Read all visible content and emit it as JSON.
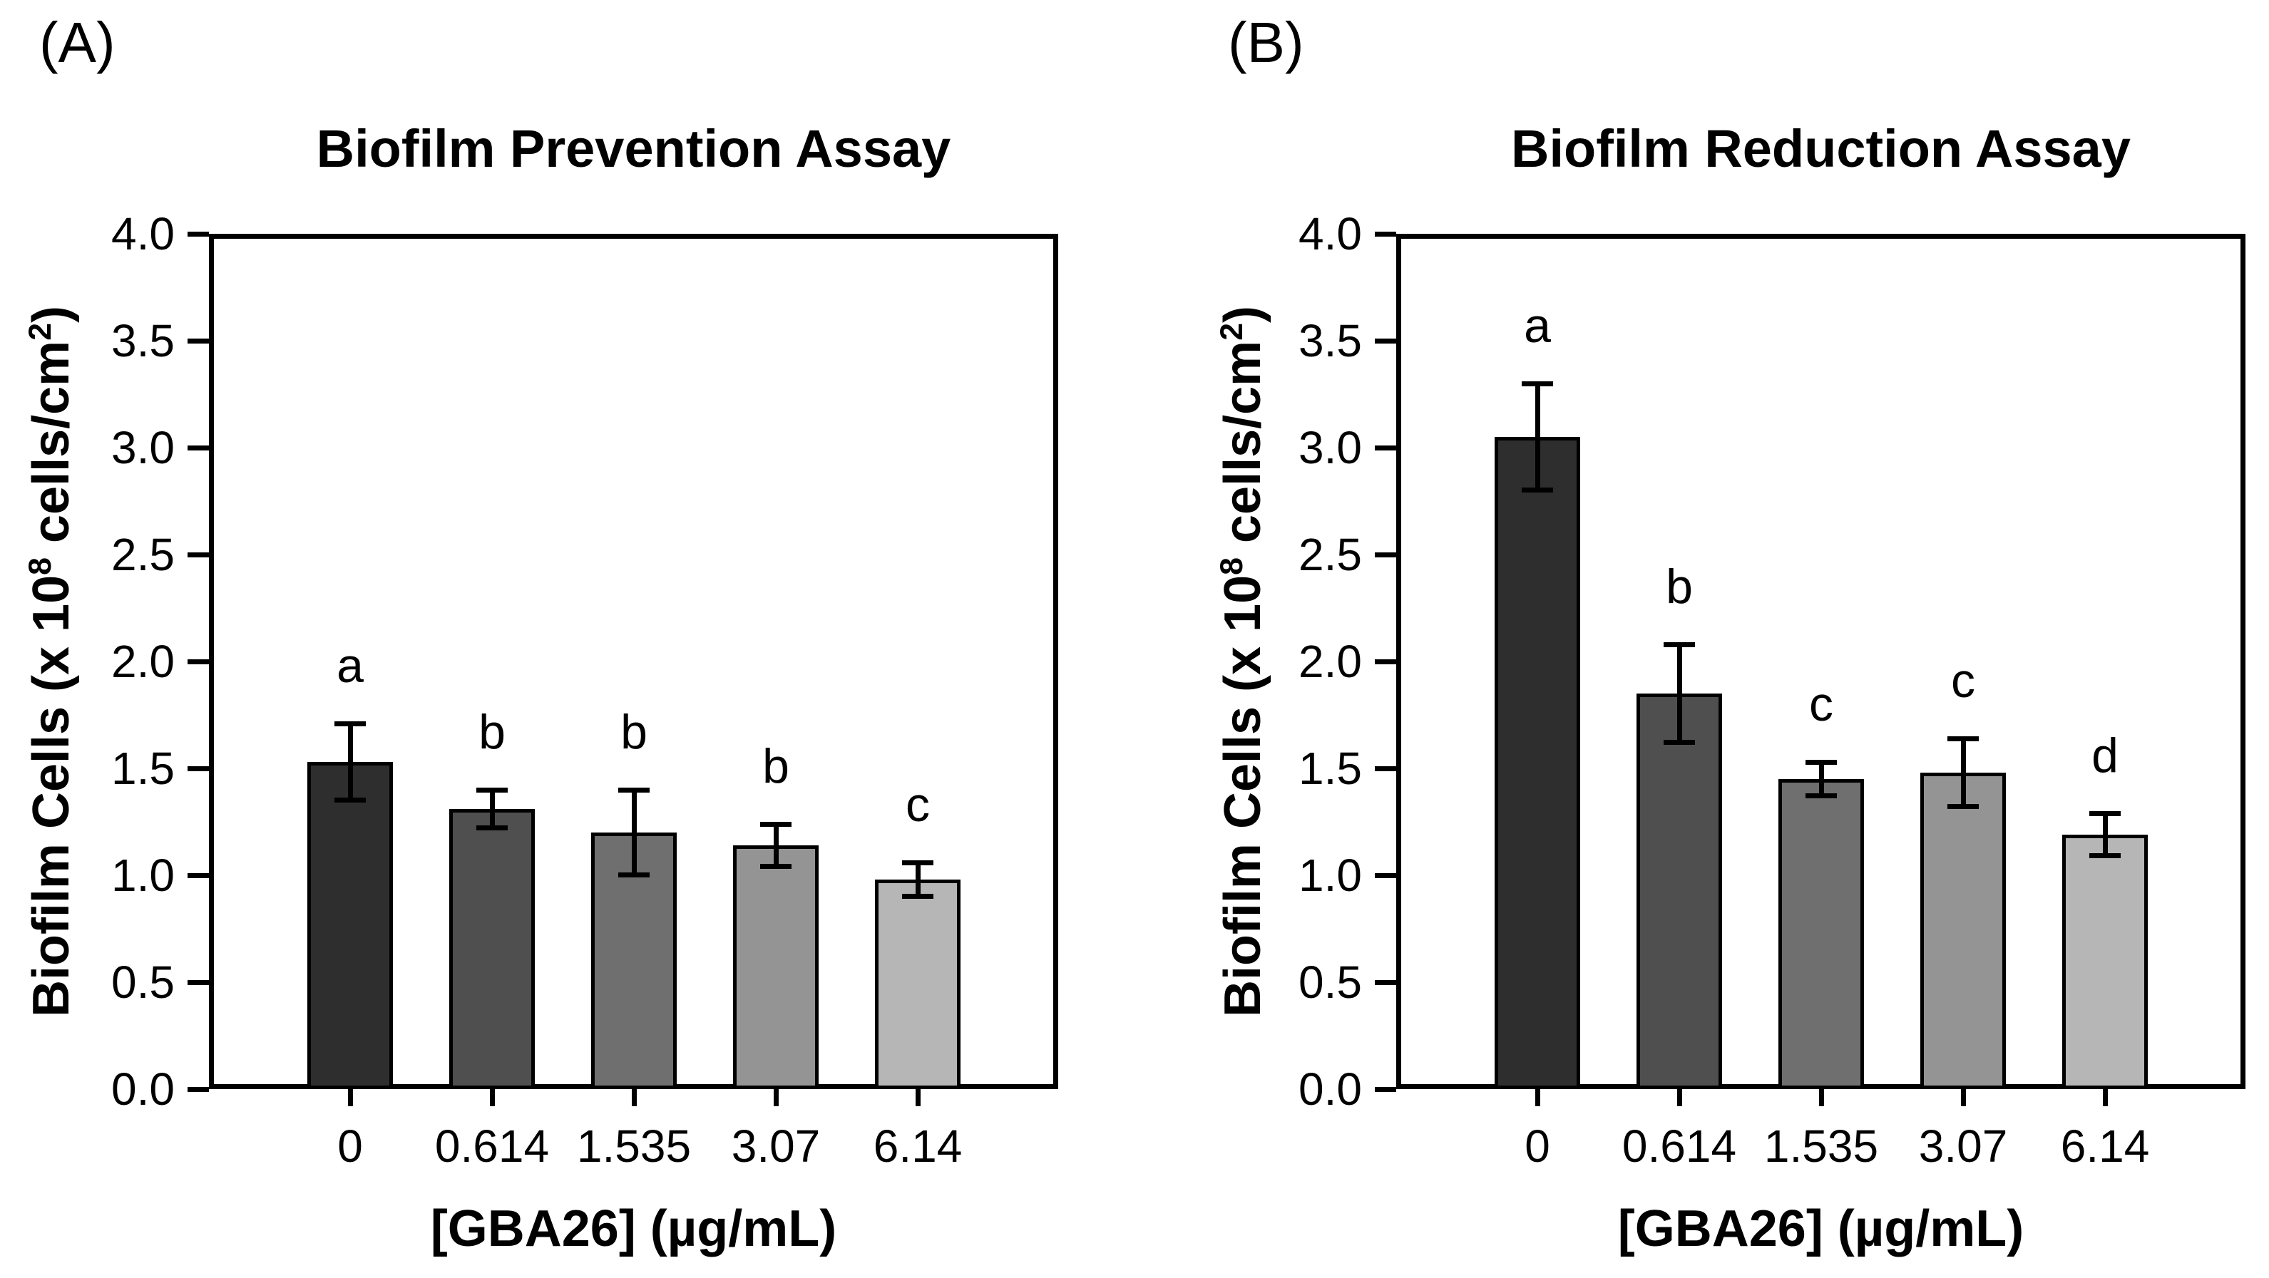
{
  "panels": [
    {
      "panel_label": "(A)",
      "title": "Biofilm Prevention Assay",
      "y_axis_title_parts": [
        {
          "t": "Biofilm Cells (x 10"
        },
        {
          "t": "8",
          "sup": true
        },
        {
          "t": " cells/cm"
        },
        {
          "t": "2",
          "sup": true
        },
        {
          "t": ")"
        }
      ],
      "y_tick_labels": [
        "0.0",
        "0.5",
        "1.0",
        "1.5",
        "2.0",
        "2.5",
        "3.0",
        "3.5",
        "4.0"
      ],
      "x_axis_title": "[GBA26] (µg/mL)",
      "x_tick_labels": [
        "0",
        "0.614",
        "1.535",
        "3.07",
        "6.14"
      ]
    },
    {
      "panel_label": "(B)",
      "title": "Biofilm Reduction Assay",
      "y_axis_title_parts": [
        {
          "t": "Biofilm Cells (x 10"
        },
        {
          "t": "8",
          "sup": true
        },
        {
          "t": " cells/cm"
        },
        {
          "t": "2",
          "sup": true
        },
        {
          "t": ")"
        }
      ],
      "y_tick_labels": [
        "0.0",
        "0.5",
        "1.0",
        "1.5",
        "2.0",
        "2.5",
        "3.0",
        "3.5",
        "4.0"
      ],
      "x_axis_title": "[GBA26] (µg/mL)",
      "x_tick_labels": [
        "0",
        "0.614",
        "1.535",
        "3.07",
        "6.14"
      ]
    }
  ],
  "chart_data": [
    {
      "type": "bar",
      "title": "Biofilm Prevention Assay",
      "xlabel": "[GBA26] (µg/mL)",
      "ylabel": "Biofilm Cells (x 10^8 cells/cm^2)",
      "categories": [
        "0",
        "0.614",
        "1.535",
        "3.07",
        "6.14"
      ],
      "values": [
        1.53,
        1.31,
        1.2,
        1.14,
        0.98
      ],
      "errors": [
        0.18,
        0.09,
        0.2,
        0.1,
        0.08
      ],
      "sig_letters": [
        "a",
        "b",
        "b",
        "b",
        "c"
      ],
      "bar_colors": [
        "#2e2e2e",
        "#4f4f4f",
        "#6f6f6f",
        "#949494",
        "#b6b6b6"
      ],
      "ylim": [
        0.0,
        4.0
      ],
      "ytick_step": 0.5,
      "grid": false,
      "legend": null
    },
    {
      "type": "bar",
      "title": "Biofilm Reduction Assay",
      "xlabel": "[GBA26] (µg/mL)",
      "ylabel": "Biofilm Cells (x 10^8 cells/cm^2)",
      "categories": [
        "0",
        "0.614",
        "1.535",
        "3.07",
        "6.14"
      ],
      "values": [
        3.05,
        1.85,
        1.45,
        1.48,
        1.19
      ],
      "errors": [
        0.25,
        0.23,
        0.08,
        0.16,
        0.1
      ],
      "sig_letters": [
        "a",
        "b",
        "c",
        "c",
        "d"
      ],
      "bar_colors": [
        "#2e2e2e",
        "#4f4f4f",
        "#6f6f6f",
        "#949494",
        "#b6b6b6"
      ],
      "ylim": [
        0.0,
        4.0
      ],
      "ytick_step": 0.5,
      "grid": false,
      "legend": null
    }
  ]
}
